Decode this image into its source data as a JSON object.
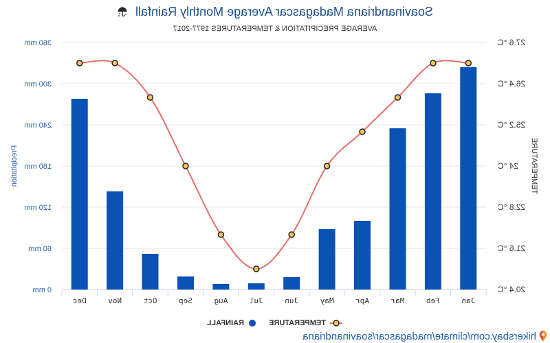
{
  "display": {
    "mirrored": true
  },
  "header": {
    "title": "Soavinandriana Madagascar Average Monthly Rainfall",
    "title_icon": "umbrella-rain-icon",
    "title_color": "#1d4f88",
    "subtitle": "AVERAGE PRECIPITATION & TEMPERATURES 1977-2017"
  },
  "chart_data": {
    "type": "bar",
    "categories": [
      "Jan",
      "Feb",
      "Mar",
      "Apr",
      "May",
      "Jun",
      "Jul",
      "Aug",
      "Sep",
      "Oct",
      "Nov",
      "Dec"
    ],
    "series": [
      {
        "name": "RAINFALL",
        "type": "bar",
        "axis": "precipitation",
        "values": [
          324,
          286,
          235,
          100,
          88,
          18,
          9,
          8,
          19,
          52,
          143,
          278
        ],
        "color": "#0b52b6"
      },
      {
        "name": "TEMPERATURE",
        "type": "line",
        "axis": "temperature",
        "values": [
          27.0,
          27.0,
          26.0,
          25.0,
          24.0,
          22.0,
          21.0,
          22.0,
          24.0,
          26.0,
          27.0,
          27.0
        ],
        "color": "#e3706b",
        "marker_color": "#f7c35f"
      }
    ],
    "y_axes": [
      {
        "id": "precipitation",
        "title": "Precipitation",
        "range": [
          0,
          360
        ],
        "tick_values": [
          0,
          60,
          120,
          180,
          240,
          300,
          360
        ],
        "tick_labels": [
          "0 mm",
          "60 mm",
          "120 mm",
          "180 mm",
          "240 mm",
          "300 mm",
          "360 mm"
        ],
        "color": "#2a62b0"
      },
      {
        "id": "temperature",
        "title": "TEMPERATURE",
        "range": [
          20.4,
          27.6
        ],
        "tick_values": [
          20.4,
          21.6,
          22.8,
          24.0,
          25.2,
          26.4,
          27.6
        ],
        "tick_labels": [
          "20.4 °C",
          "21.6 °C",
          "22.8 °C",
          "24 °C",
          "25.2 °C",
          "26.4 °C",
          "27.6 °C"
        ],
        "color": "#333333"
      }
    ],
    "grid": true,
    "legend": "bottom-center"
  },
  "legend": {
    "temperature_icon": "line-marker-icon",
    "rainfall_icon": "circle-marker-icon"
  },
  "footer": {
    "source": "hikersbay.com/climate/madagascar/soavinandriana",
    "icon": "location-pin-icon"
  }
}
